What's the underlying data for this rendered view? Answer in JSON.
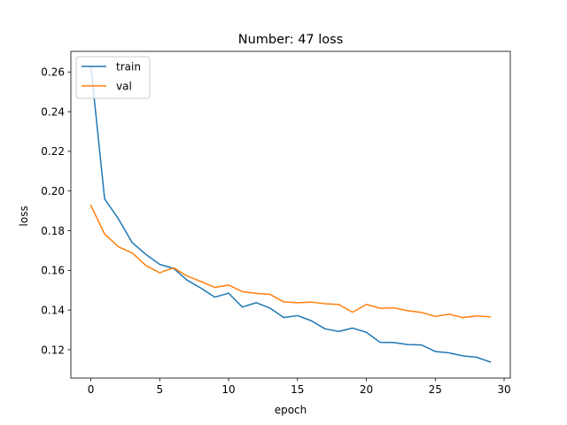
{
  "chart_data": {
    "type": "line",
    "title": "Number: 47 loss",
    "xlabel": "epoch",
    "ylabel": "loss",
    "xlim": [
      -1.45,
      30.45
    ],
    "ylim": [
      0.1057,
      0.2704
    ],
    "xticks": [
      0,
      5,
      10,
      15,
      20,
      25,
      30
    ],
    "yticks": [
      0.12,
      0.14,
      0.16,
      0.18,
      0.2,
      0.22,
      0.24,
      0.26
    ],
    "ytick_labels": [
      "0.12",
      "0.14",
      "0.16",
      "0.18",
      "0.20",
      "0.22",
      "0.24",
      "0.26"
    ],
    "grid": false,
    "legend_position": "upper left",
    "x": [
      0,
      1,
      2,
      3,
      4,
      5,
      6,
      7,
      8,
      9,
      10,
      11,
      12,
      13,
      14,
      15,
      16,
      17,
      18,
      19,
      20,
      21,
      22,
      23,
      24,
      25,
      26,
      27,
      28,
      29
    ],
    "series": [
      {
        "name": "train",
        "color": "#1f77b4",
        "values": [
          0.263,
          0.196,
          0.186,
          0.174,
          0.168,
          0.163,
          0.161,
          0.155,
          0.151,
          0.1465,
          0.1485,
          0.1415,
          0.1437,
          0.141,
          0.1362,
          0.1372,
          0.1346,
          0.1305,
          0.1292,
          0.1309,
          0.1288,
          0.1237,
          0.1236,
          0.1226,
          0.1224,
          0.1191,
          0.1184,
          0.1169,
          0.1162,
          0.1138
        ]
      },
      {
        "name": "val",
        "color": "#ff7f0e",
        "values": [
          0.1927,
          0.1783,
          0.1719,
          0.1688,
          0.1624,
          0.1588,
          0.1613,
          0.1571,
          0.1544,
          0.1514,
          0.1526,
          0.1493,
          0.1484,
          0.1479,
          0.1441,
          0.1437,
          0.144,
          0.1432,
          0.1428,
          0.1389,
          0.1428,
          0.1409,
          0.1411,
          0.1397,
          0.1388,
          0.1368,
          0.1379,
          0.1362,
          0.137,
          0.1366
        ]
      }
    ]
  }
}
